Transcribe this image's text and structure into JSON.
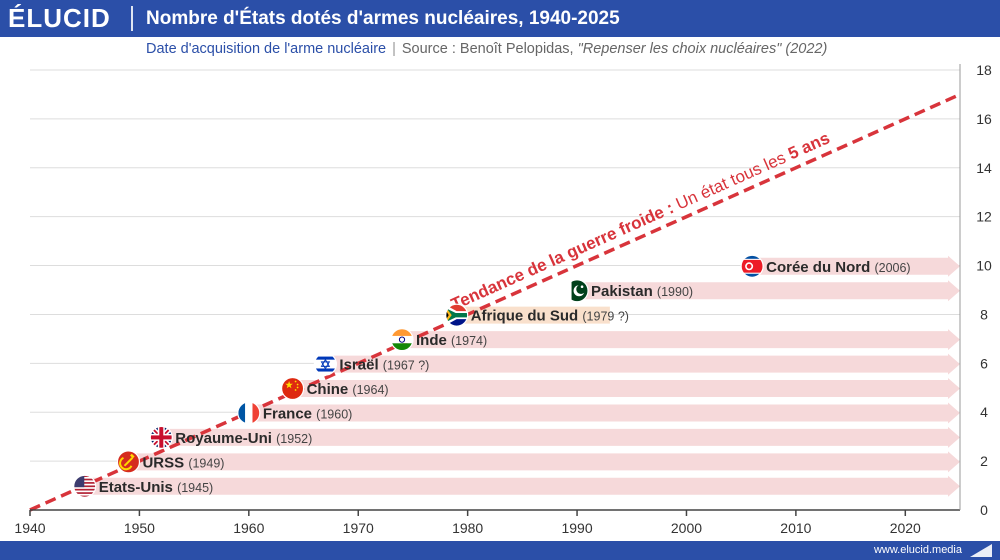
{
  "header": {
    "logo": "ÉLUCID",
    "title": "Nombre d'États dotés d'armes nucléaires, 1940-2025"
  },
  "subtitle": {
    "text": "Date d'acquisition de l'arme nucléaire",
    "separator": "|",
    "source_prefix": "Source : Benoît Pelopidas, ",
    "source_book": "\"Repenser les choix nucléaires\" (2022)"
  },
  "footer": {
    "url": "www.elucid.media"
  },
  "colors": {
    "brand": "#2b4fa8",
    "arrow": "#f6d9da",
    "arrow_uncertain": "#f9e0cc",
    "trend": "#d8343b",
    "grid": "#dddddd"
  },
  "chart_data": {
    "type": "bar",
    "orientation": "horizontal",
    "xlim": [
      1940,
      2025
    ],
    "ylim": [
      0,
      18
    ],
    "x_ticks": [
      1940,
      1950,
      1960,
      1970,
      1980,
      1990,
      2000,
      2010,
      2020
    ],
    "y_ticks": [
      0,
      2,
      4,
      6,
      8,
      10,
      12,
      14,
      16,
      18
    ],
    "y_axis_side": "right",
    "grid": "horizontal",
    "states": [
      {
        "name": "Etats-Unis",
        "year_label": "(1945)",
        "year": 1945,
        "count": 1,
        "end": 2025,
        "flag": "usa-flag"
      },
      {
        "name": "URSS",
        "year_label": "(1949)",
        "year": 1949,
        "count": 2,
        "end": 2025,
        "flag": "ussr-flag"
      },
      {
        "name": "Royaume-Uni",
        "year_label": "(1952)",
        "year": 1952,
        "count": 3,
        "end": 2025,
        "flag": "uk-flag"
      },
      {
        "name": "France",
        "year_label": "(1960)",
        "year": 1960,
        "count": 4,
        "end": 2025,
        "flag": "france-flag"
      },
      {
        "name": "Chine",
        "year_label": "(1964)",
        "year": 1964,
        "count": 5,
        "end": 2025,
        "flag": "china-flag"
      },
      {
        "name": "Israël",
        "year_label": "(1967 ?)",
        "year": 1967,
        "count": 6,
        "end": 2025,
        "flag": "israel-flag"
      },
      {
        "name": "Inde",
        "year_label": "(1974)",
        "year": 1974,
        "count": 7,
        "end": 2025,
        "flag": "india-flag"
      },
      {
        "name": "Afrique du Sud",
        "year_label": "(1979 ?)",
        "year": 1979,
        "count": 8,
        "end": 1993,
        "flag": "south-africa-flag"
      },
      {
        "name": "Pakistan",
        "year_label": "(1990)",
        "year": 1990,
        "count": 9,
        "end": 2025,
        "flag": "pakistan-flag"
      },
      {
        "name": "Corée du Nord",
        "year_label": "(2006)",
        "year": 2006,
        "count": 10,
        "end": 2025,
        "flag": "north-korea-flag"
      }
    ],
    "trend": {
      "x": [
        1940,
        2025
      ],
      "y": [
        0,
        17
      ],
      "label_prefix": "Tendance de la guerre froide : ",
      "label_mid": "Un état tous les ",
      "label_bold": "5 ans"
    }
  }
}
